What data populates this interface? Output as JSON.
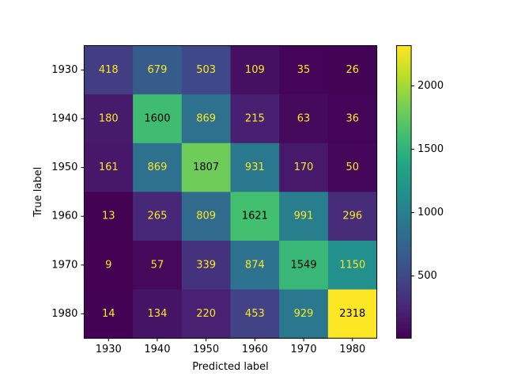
{
  "chart_data": {
    "type": "heatmap",
    "title": "",
    "xlabel": "Predicted label",
    "ylabel": "True label",
    "x_categories": [
      "1930",
      "1940",
      "1950",
      "1960",
      "1970",
      "1980"
    ],
    "y_categories": [
      "1930",
      "1940",
      "1950",
      "1960",
      "1970",
      "1980"
    ],
    "values": [
      [
        418,
        679,
        503,
        109,
        35,
        26
      ],
      [
        180,
        1600,
        869,
        215,
        63,
        36
      ],
      [
        161,
        869,
        1807,
        931,
        170,
        50
      ],
      [
        13,
        265,
        809,
        1621,
        991,
        296
      ],
      [
        9,
        57,
        339,
        874,
        1549,
        1150
      ],
      [
        14,
        134,
        220,
        453,
        929,
        2318
      ]
    ],
    "colormap": "viridis",
    "value_range": [
      9,
      2318
    ],
    "colorbar_ticks": [
      "500",
      "1000",
      "1500",
      "2000"
    ],
    "colorbar_tick_values": [
      500,
      1000,
      1500,
      2000
    ]
  }
}
